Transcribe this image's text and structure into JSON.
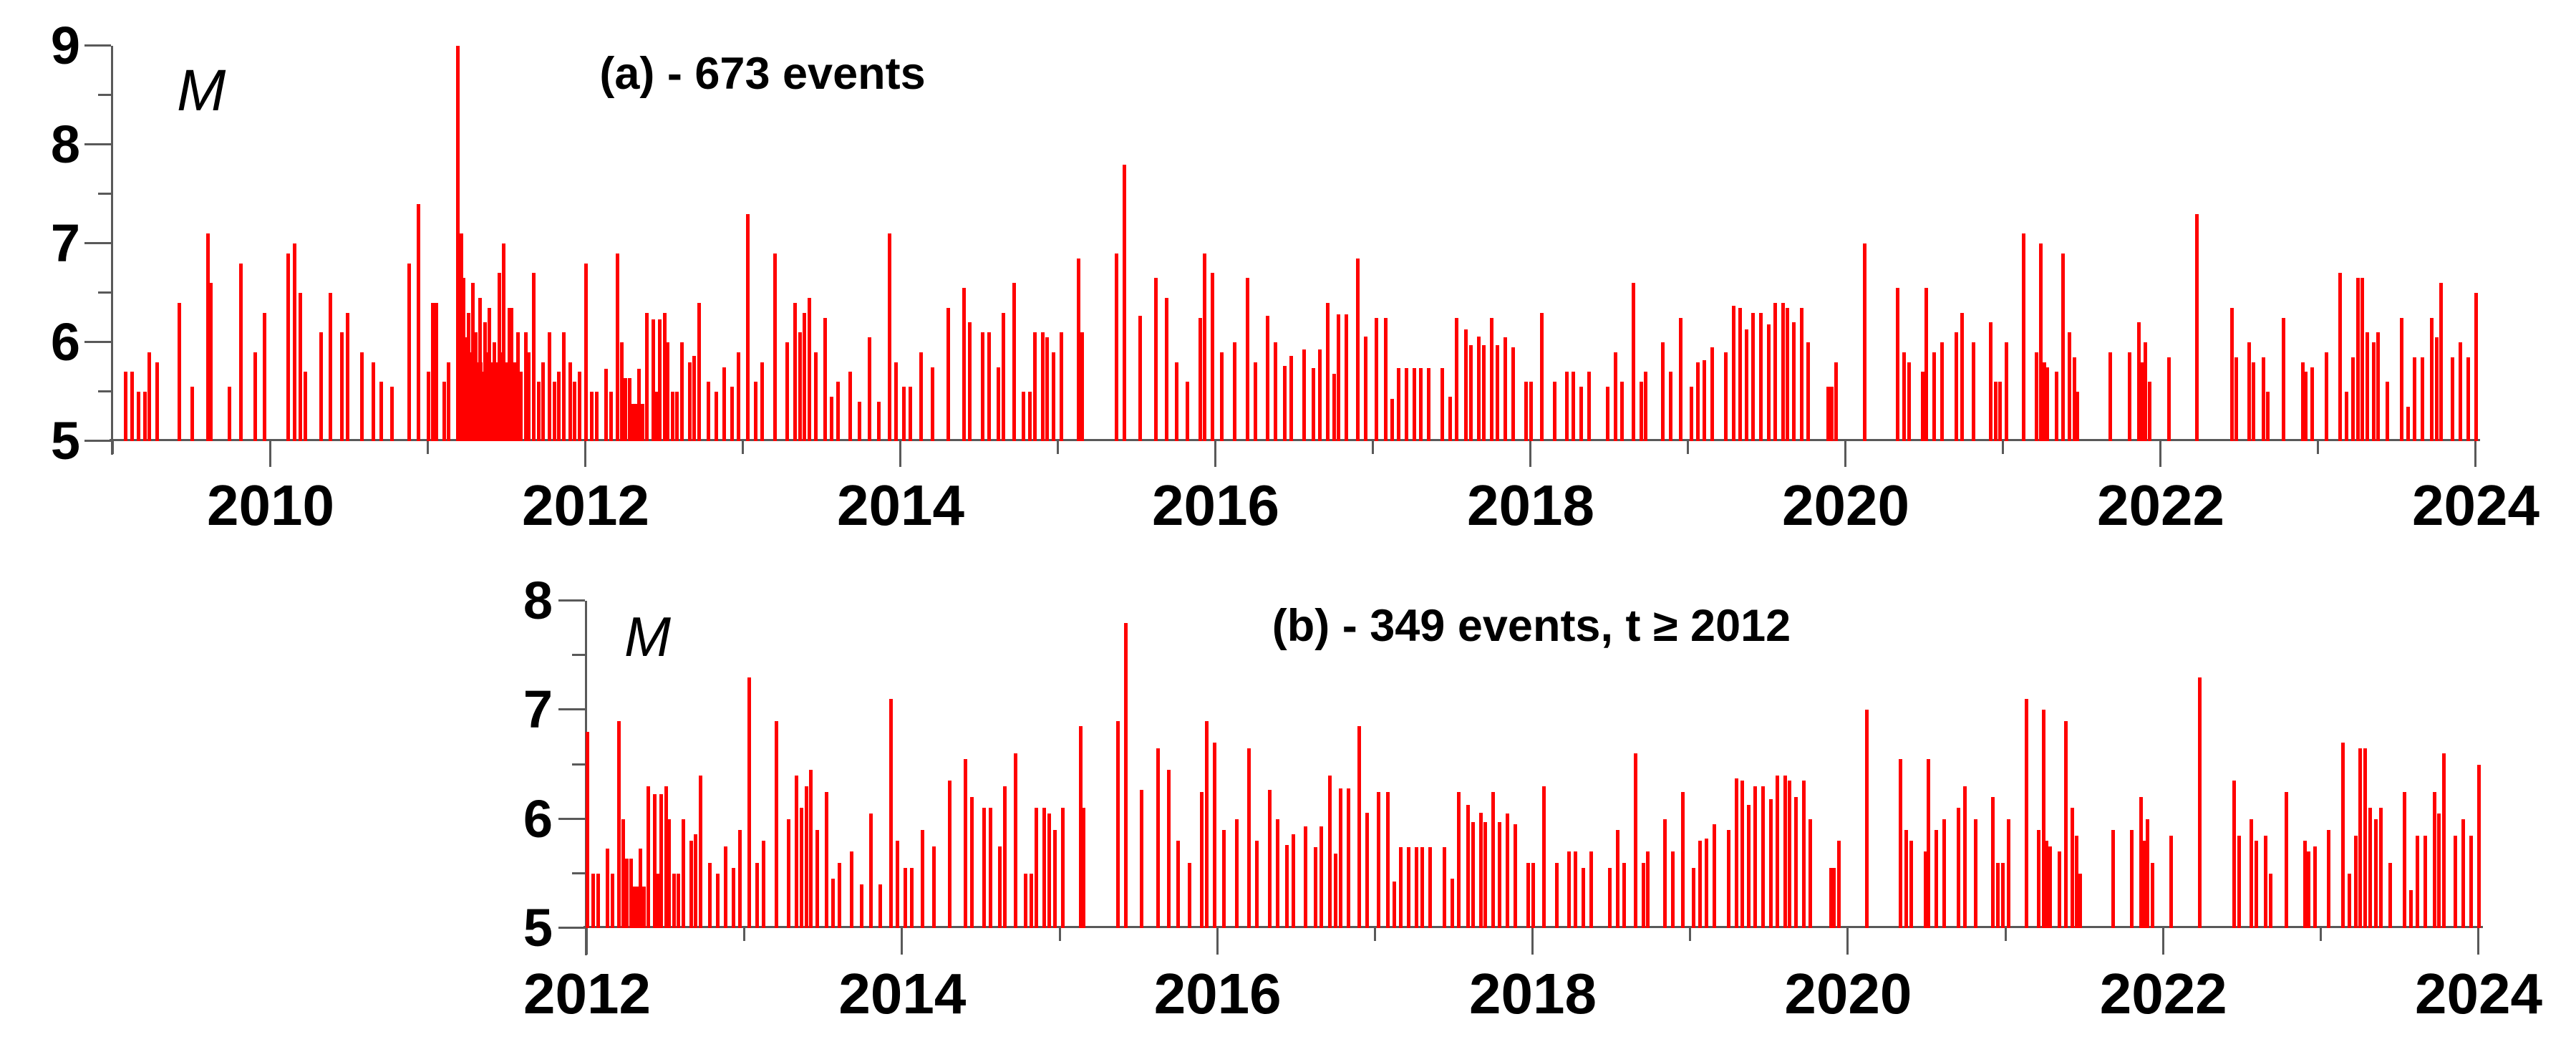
{
  "figure": {
    "background": "#ffffff",
    "bar_color": "#ff0000",
    "axis_color": "#595959",
    "text_color": "#000000"
  },
  "chart_data": [
    {
      "type": "bar",
      "panel": "a",
      "title": "(a) - 673 events",
      "ylabel": "M",
      "xlim": [
        2009,
        2024
      ],
      "ylim": [
        5,
        9
      ],
      "grid": false,
      "legend": "none",
      "x_major_ticks": [
        2010,
        2012,
        2014,
        2016,
        2018,
        2020,
        2022,
        2024
      ],
      "x_tick_labels": [
        "2010",
        "2012",
        "2014",
        "2016",
        "2018",
        "2020",
        "2022",
        "2024"
      ],
      "x_minor_ticks": [
        2009,
        2011,
        2013,
        2015,
        2017,
        2019,
        2021,
        2023
      ],
      "y_major_ticks": [
        5,
        6,
        7,
        8,
        9
      ],
      "y_tick_labels": [
        "5",
        "6",
        "7",
        "8",
        "9"
      ],
      "y_minor_ticks": [
        5.5,
        6.5,
        7.5,
        8.5
      ],
      "t_min": 2009,
      "t_max": 2024.05
    },
    {
      "type": "bar",
      "panel": "b",
      "title": "(b) - 349 events, t ≥ 2012",
      "ylabel": "M",
      "xlim": [
        2012,
        2024
      ],
      "ylim": [
        5,
        8
      ],
      "grid": false,
      "legend": "none",
      "x_major_ticks": [
        2012,
        2014,
        2016,
        2018,
        2020,
        2022,
        2024
      ],
      "x_tick_labels": [
        "2012",
        "2014",
        "2016",
        "2018",
        "2020",
        "2022",
        "2024"
      ],
      "x_minor_ticks": [
        2013,
        2015,
        2017,
        2019,
        2021,
        2023
      ],
      "y_major_ticks": [
        5,
        6,
        7,
        8
      ],
      "y_tick_labels": [
        "5",
        "6",
        "7",
        "8"
      ],
      "y_minor_ticks": [
        5.5,
        6.5,
        7.5
      ],
      "t_min": 2012,
      "t_max": 2024.05
    }
  ],
  "events": [
    [
      2009.08,
      5.7
    ],
    [
      2009.12,
      5.7
    ],
    [
      2009.16,
      5.5
    ],
    [
      2009.2,
      5.5
    ],
    [
      2009.23,
      5.9
    ],
    [
      2009.28,
      5.8
    ],
    [
      2009.42,
      6.4
    ],
    [
      2009.5,
      5.55
    ],
    [
      2009.6,
      7.1
    ],
    [
      2009.62,
      6.6
    ],
    [
      2009.74,
      5.55
    ],
    [
      2009.81,
      6.8
    ],
    [
      2009.9,
      5.9
    ],
    [
      2009.96,
      6.3
    ],
    [
      2010.11,
      6.9
    ],
    [
      2010.15,
      7.0
    ],
    [
      2010.19,
      6.5
    ],
    [
      2010.22,
      5.7
    ],
    [
      2010.32,
      6.1
    ],
    [
      2010.38,
      6.5
    ],
    [
      2010.45,
      6.1
    ],
    [
      2010.49,
      6.3
    ],
    [
      2010.58,
      5.9
    ],
    [
      2010.65,
      5.8
    ],
    [
      2010.7,
      5.6
    ],
    [
      2010.77,
      5.55
    ],
    [
      2010.88,
      6.8
    ],
    [
      2010.94,
      7.4
    ],
    [
      2011.0,
      5.7
    ],
    [
      2011.03,
      6.4
    ],
    [
      2011.05,
      6.4
    ],
    [
      2011.1,
      5.6
    ],
    [
      2011.13,
      5.8
    ],
    [
      2011.19,
      9.0
    ],
    [
      2011.195,
      5.6
    ],
    [
      2011.2,
      5.8
    ],
    [
      2011.205,
      5.5
    ],
    [
      2011.21,
      7.1
    ],
    [
      2011.215,
      6.0
    ],
    [
      2011.22,
      5.7
    ],
    [
      2011.225,
      6.65
    ],
    [
      2011.23,
      5.9
    ],
    [
      2011.235,
      5.5
    ],
    [
      2011.24,
      6.05
    ],
    [
      2011.245,
      5.6
    ],
    [
      2011.25,
      5.8
    ],
    [
      2011.255,
      6.3
    ],
    [
      2011.26,
      5.5
    ],
    [
      2011.265,
      5.7
    ],
    [
      2011.27,
      5.9
    ],
    [
      2011.275,
      5.6
    ],
    [
      2011.28,
      5.5
    ],
    [
      2011.285,
      6.6
    ],
    [
      2011.29,
      5.8
    ],
    [
      2011.295,
      5.6
    ],
    [
      2011.3,
      6.1
    ],
    [
      2011.305,
      5.5
    ],
    [
      2011.31,
      5.7
    ],
    [
      2011.315,
      5.8
    ],
    [
      2011.32,
      5.6
    ],
    [
      2011.325,
      5.5
    ],
    [
      2011.33,
      6.45
    ],
    [
      2011.335,
      5.8
    ],
    [
      2011.34,
      5.6
    ],
    [
      2011.345,
      5.7
    ],
    [
      2011.35,
      5.5
    ],
    [
      2011.355,
      5.7
    ],
    [
      2011.36,
      6.2
    ],
    [
      2011.365,
      5.6
    ],
    [
      2011.37,
      5.5
    ],
    [
      2011.375,
      5.9
    ],
    [
      2011.38,
      5.7
    ],
    [
      2011.385,
      5.6
    ],
    [
      2011.39,
      6.35
    ],
    [
      2011.395,
      5.5
    ],
    [
      2011.4,
      5.8
    ],
    [
      2011.405,
      5.6
    ],
    [
      2011.41,
      5.6
    ],
    [
      2011.415,
      5.5
    ],
    [
      2011.42,
      6.0
    ],
    [
      2011.425,
      5.7
    ],
    [
      2011.43,
      5.6
    ],
    [
      2011.435,
      5.8
    ],
    [
      2011.44,
      5.5
    ],
    [
      2011.445,
      5.8
    ],
    [
      2011.45,
      6.7
    ],
    [
      2011.455,
      5.6
    ],
    [
      2011.46,
      5.5
    ],
    [
      2011.465,
      5.9
    ],
    [
      2011.47,
      5.7
    ],
    [
      2011.475,
      5.6
    ],
    [
      2011.48,
      7.0
    ],
    [
      2011.49,
      5.5
    ],
    [
      2011.495,
      5.8
    ],
    [
      2011.5,
      5.5
    ],
    [
      2011.505,
      5.6
    ],
    [
      2011.51,
      5.5
    ],
    [
      2011.515,
      6.35
    ],
    [
      2011.52,
      5.7
    ],
    [
      2011.525,
      5.6
    ],
    [
      2011.53,
      6.35
    ],
    [
      2011.535,
      5.5
    ],
    [
      2011.54,
      5.6
    ],
    [
      2011.545,
      5.5
    ],
    [
      2011.55,
      5.8
    ],
    [
      2011.57,
      6.1
    ],
    [
      2011.59,
      5.7
    ],
    [
      2011.62,
      6.1
    ],
    [
      2011.64,
      5.9
    ],
    [
      2011.67,
      6.7
    ],
    [
      2011.7,
      5.6
    ],
    [
      2011.73,
      5.8
    ],
    [
      2011.77,
      6.1
    ],
    [
      2011.8,
      5.6
    ],
    [
      2011.83,
      5.7
    ],
    [
      2011.86,
      6.1
    ],
    [
      2011.9,
      5.8
    ],
    [
      2011.93,
      5.6
    ],
    [
      2011.96,
      5.7
    ],
    [
      2012.0,
      6.8
    ],
    [
      2012.04,
      5.5
    ],
    [
      2012.07,
      5.5
    ],
    [
      2012.13,
      5.73
    ],
    [
      2012.16,
      5.5
    ],
    [
      2012.2,
      6.9
    ],
    [
      2012.23,
      6.0
    ],
    [
      2012.25,
      5.64
    ],
    [
      2012.28,
      5.64
    ],
    [
      2012.3,
      5.38
    ],
    [
      2012.32,
      5.38
    ],
    [
      2012.34,
      5.73
    ],
    [
      2012.36,
      5.38
    ],
    [
      2012.39,
      6.3
    ],
    [
      2012.43,
      6.23
    ],
    [
      2012.45,
      5.5
    ],
    [
      2012.47,
      6.23
    ],
    [
      2012.5,
      6.3
    ],
    [
      2012.52,
      6.0
    ],
    [
      2012.55,
      5.5
    ],
    [
      2012.58,
      5.5
    ],
    [
      2012.61,
      6.0
    ],
    [
      2012.66,
      5.8
    ],
    [
      2012.69,
      5.86
    ],
    [
      2012.72,
      6.4
    ],
    [
      2012.78,
      5.6
    ],
    [
      2012.83,
      5.5
    ],
    [
      2012.88,
      5.75
    ],
    [
      2012.93,
      5.55
    ],
    [
      2012.97,
      5.9
    ],
    [
      2013.03,
      7.3
    ],
    [
      2013.08,
      5.6
    ],
    [
      2013.12,
      5.8
    ],
    [
      2013.2,
      6.9
    ],
    [
      2013.28,
      6.0
    ],
    [
      2013.33,
      6.4
    ],
    [
      2013.36,
      6.1
    ],
    [
      2013.39,
      6.3
    ],
    [
      2013.42,
      6.45
    ],
    [
      2013.46,
      5.9
    ],
    [
      2013.52,
      6.25
    ],
    [
      2013.56,
      5.45
    ],
    [
      2013.6,
      5.6
    ],
    [
      2013.68,
      5.7
    ],
    [
      2013.74,
      5.4
    ],
    [
      2013.8,
      6.05
    ],
    [
      2013.86,
      5.4
    ],
    [
      2013.93,
      7.1
    ],
    [
      2013.97,
      5.8
    ],
    [
      2014.02,
      5.55
    ],
    [
      2014.06,
      5.55
    ],
    [
      2014.13,
      5.9
    ],
    [
      2014.2,
      5.75
    ],
    [
      2014.3,
      6.35
    ],
    [
      2014.4,
      6.55
    ],
    [
      2014.44,
      6.2
    ],
    [
      2014.52,
      6.1
    ],
    [
      2014.56,
      6.1
    ],
    [
      2014.62,
      5.75
    ],
    [
      2014.65,
      6.3
    ],
    [
      2014.72,
      6.6
    ],
    [
      2014.78,
      5.5
    ],
    [
      2014.82,
      5.5
    ],
    [
      2014.85,
      6.1
    ],
    [
      2014.9,
      6.1
    ],
    [
      2014.93,
      6.05
    ],
    [
      2014.97,
      5.9
    ],
    [
      2015.02,
      6.1
    ],
    [
      2015.13,
      6.85
    ],
    [
      2015.15,
      6.1
    ],
    [
      2015.37,
      6.9
    ],
    [
      2015.42,
      7.8
    ],
    [
      2015.52,
      6.27
    ],
    [
      2015.62,
      6.65
    ],
    [
      2015.69,
      6.45
    ],
    [
      2015.75,
      5.8
    ],
    [
      2015.82,
      5.6
    ],
    [
      2015.9,
      6.25
    ],
    [
      2015.93,
      6.9
    ],
    [
      2015.98,
      6.7
    ],
    [
      2016.04,
      5.9
    ],
    [
      2016.12,
      6.0
    ],
    [
      2016.2,
      6.65
    ],
    [
      2016.25,
      5.8
    ],
    [
      2016.33,
      6.27
    ],
    [
      2016.38,
      6.0
    ],
    [
      2016.44,
      5.76
    ],
    [
      2016.48,
      5.86
    ],
    [
      2016.56,
      5.93
    ],
    [
      2016.62,
      5.74
    ],
    [
      2016.66,
      5.93
    ],
    [
      2016.71,
      6.4
    ],
    [
      2016.75,
      5.68
    ],
    [
      2016.78,
      6.28
    ],
    [
      2016.83,
      6.28
    ],
    [
      2016.9,
      6.85
    ],
    [
      2016.95,
      6.06
    ],
    [
      2017.02,
      6.25
    ],
    [
      2017.08,
      6.25
    ],
    [
      2017.12,
      5.43
    ],
    [
      2017.16,
      5.74
    ],
    [
      2017.21,
      5.74
    ],
    [
      2017.26,
      5.74
    ],
    [
      2017.3,
      5.74
    ],
    [
      2017.35,
      5.74
    ],
    [
      2017.44,
      5.74
    ],
    [
      2017.49,
      5.45
    ],
    [
      2017.53,
      6.25
    ],
    [
      2017.59,
      6.13
    ],
    [
      2017.62,
      5.97
    ],
    [
      2017.67,
      6.06
    ],
    [
      2017.7,
      5.97
    ],
    [
      2017.75,
      6.25
    ],
    [
      2017.79,
      5.97
    ],
    [
      2017.84,
      6.05
    ],
    [
      2017.89,
      5.95
    ],
    [
      2017.97,
      5.6
    ],
    [
      2018.0,
      5.6
    ],
    [
      2018.07,
      6.3
    ],
    [
      2018.15,
      5.6
    ],
    [
      2018.23,
      5.7
    ],
    [
      2018.27,
      5.7
    ],
    [
      2018.32,
      5.55
    ],
    [
      2018.37,
      5.7
    ],
    [
      2018.49,
      5.55
    ],
    [
      2018.54,
      5.9
    ],
    [
      2018.58,
      5.6
    ],
    [
      2018.65,
      6.6
    ],
    [
      2018.7,
      5.6
    ],
    [
      2018.73,
      5.7
    ],
    [
      2018.84,
      6.0
    ],
    [
      2018.89,
      5.7
    ],
    [
      2018.95,
      6.25
    ],
    [
      2019.02,
      5.55
    ],
    [
      2019.06,
      5.8
    ],
    [
      2019.1,
      5.82
    ],
    [
      2019.15,
      5.95
    ],
    [
      2019.24,
      5.9
    ],
    [
      2019.29,
      6.37
    ],
    [
      2019.33,
      6.35
    ],
    [
      2019.37,
      6.13
    ],
    [
      2019.41,
      6.3
    ],
    [
      2019.46,
      6.3
    ],
    [
      2019.51,
      6.18
    ],
    [
      2019.55,
      6.4
    ],
    [
      2019.6,
      6.4
    ],
    [
      2019.63,
      6.35
    ],
    [
      2019.67,
      6.2
    ],
    [
      2019.72,
      6.35
    ],
    [
      2019.76,
      6.0
    ],
    [
      2019.89,
      5.55
    ],
    [
      2019.91,
      5.55
    ],
    [
      2019.94,
      5.8
    ],
    [
      2020.12,
      7.0
    ],
    [
      2020.33,
      6.55
    ],
    [
      2020.37,
      5.9
    ],
    [
      2020.4,
      5.8
    ],
    [
      2020.49,
      5.7
    ],
    [
      2020.51,
      6.55
    ],
    [
      2020.56,
      5.9
    ],
    [
      2020.61,
      6.0
    ],
    [
      2020.7,
      6.1
    ],
    [
      2020.74,
      6.3
    ],
    [
      2020.81,
      6.0
    ],
    [
      2020.92,
      6.2
    ],
    [
      2020.95,
      5.6
    ],
    [
      2020.98,
      5.6
    ],
    [
      2021.02,
      6.0
    ],
    [
      2021.13,
      7.1
    ],
    [
      2021.21,
      5.9
    ],
    [
      2021.24,
      7.0
    ],
    [
      2021.26,
      5.8
    ],
    [
      2021.28,
      5.75
    ],
    [
      2021.34,
      5.7
    ],
    [
      2021.38,
      6.9
    ],
    [
      2021.42,
      6.1
    ],
    [
      2021.45,
      5.85
    ],
    [
      2021.47,
      5.5
    ],
    [
      2021.68,
      5.9
    ],
    [
      2021.8,
      5.9
    ],
    [
      2021.86,
      6.2
    ],
    [
      2021.88,
      5.8
    ],
    [
      2021.9,
      6.0
    ],
    [
      2021.93,
      5.6
    ],
    [
      2022.05,
      5.85
    ],
    [
      2022.23,
      7.3
    ],
    [
      2022.45,
      6.35
    ],
    [
      2022.48,
      5.85
    ],
    [
      2022.56,
      6.0
    ],
    [
      2022.59,
      5.8
    ],
    [
      2022.65,
      5.85
    ],
    [
      2022.68,
      5.5
    ],
    [
      2022.78,
      6.25
    ],
    [
      2022.9,
      5.8
    ],
    [
      2022.92,
      5.7
    ],
    [
      2022.96,
      5.75
    ],
    [
      2023.05,
      5.9
    ],
    [
      2023.14,
      6.7
    ],
    [
      2023.18,
      5.5
    ],
    [
      2023.22,
      5.85
    ],
    [
      2023.25,
      6.65
    ],
    [
      2023.28,
      6.65
    ],
    [
      2023.31,
      6.1
    ],
    [
      2023.35,
      6.0
    ],
    [
      2023.38,
      6.1
    ],
    [
      2023.44,
      5.6
    ],
    [
      2023.53,
      6.25
    ],
    [
      2023.57,
      5.35
    ],
    [
      2023.61,
      5.85
    ],
    [
      2023.66,
      5.85
    ],
    [
      2023.72,
      6.25
    ],
    [
      2023.75,
      6.05
    ],
    [
      2023.78,
      6.6
    ],
    [
      2023.85,
      5.85
    ],
    [
      2023.9,
      6.0
    ],
    [
      2023.95,
      5.85
    ],
    [
      2024.0,
      6.5
    ]
  ]
}
